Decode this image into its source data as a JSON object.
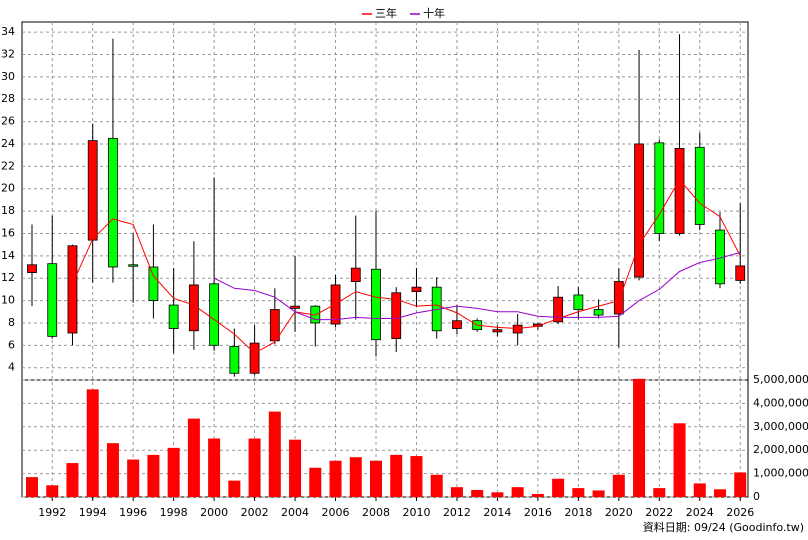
{
  "chart_data": [
    {
      "type": "candlestick",
      "categories": [
        null,
        "1992",
        null,
        "1994",
        null,
        "1996",
        null,
        "1998",
        null,
        "2000",
        null,
        "2002",
        null,
        "2004",
        null,
        "2006",
        null,
        "2008",
        null,
        "2010",
        null,
        "2012",
        null,
        "2014",
        null,
        "2016",
        null,
        "2018",
        null,
        "2020",
        null,
        "2022",
        null,
        "2024",
        null,
        "2026"
      ],
      "open": [
        12.5,
        13.3,
        7.1,
        15.4,
        24.5,
        13.2,
        13,
        9.6,
        7.3,
        11.5,
        5.9,
        3.5,
        6.4,
        9.3,
        9.5,
        7.9,
        11.7,
        12.8,
        6.6,
        10.8,
        11.2,
        7.5,
        8.2,
        7.2,
        7.1,
        7.7,
        8.1,
        10.5,
        9.2,
        8.8,
        12.1,
        24.1,
        16,
        23.7,
        16.3,
        11.8
      ],
      "high": [
        16.8,
        17.6,
        15,
        25.8,
        33.4,
        16,
        16.8,
        12.9,
        15.3,
        21,
        7.5,
        7.8,
        11.1,
        14,
        9.6,
        12.3,
        17.6,
        18,
        11.2,
        12.9,
        12.1,
        9.6,
        8.4,
        7.8,
        8.8,
        8,
        11.3,
        11.2,
        10.1,
        12.9,
        32.4,
        24.4,
        33.8,
        25,
        17.9,
        18.7
      ],
      "low": [
        9.5,
        6.6,
        6,
        11.6,
        11.6,
        9.8,
        8.4,
        5.3,
        5.6,
        5.5,
        3.2,
        3.3,
        6.1,
        7.2,
        5.9,
        7.6,
        8.3,
        5,
        5.4,
        9.4,
        6.6,
        7,
        7.2,
        6.8,
        6,
        7.4,
        7.9,
        8.3,
        8.4,
        5.8,
        11.8,
        15.3,
        15.8,
        16.3,
        11.1,
        11.5
      ],
      "close": [
        13.2,
        6.8,
        14.9,
        24.3,
        13,
        13.1,
        10,
        7.5,
        11.4,
        6,
        3.5,
        6.2,
        9.2,
        9.5,
        8,
        11.4,
        12.9,
        6.5,
        10.7,
        11.2,
        7.3,
        8.2,
        7.4,
        7.4,
        7.8,
        7.9,
        10.3,
        9.2,
        8.7,
        11.7,
        24,
        16,
        23.6,
        16.8,
        11.5,
        13.1
      ],
      "up_color": "#ff0000",
      "down_color": "#00ff00",
      "series": [
        {
          "name": "三年",
          "color": "#ff0000",
          "values": [
            null,
            null,
            11.5,
            15.5,
            17.3,
            16.8,
            12.2,
            10.2,
            9.6,
            8.3,
            7.0,
            5.3,
            6.3,
            9.0,
            8.7,
            9.7,
            10.8,
            10.3,
            10.1,
            9.5,
            9.6,
            8.9,
            7.8,
            7.6,
            7.5,
            7.7,
            8.4,
            9.0,
            9.5,
            10.0,
            15.0,
            17.7,
            20.8,
            18.7,
            17.5,
            14.0
          ]
        },
        {
          "name": "十年",
          "color": "#9900cc",
          "values": [
            null,
            null,
            null,
            null,
            null,
            null,
            null,
            null,
            null,
            12.0,
            11.1,
            10.9,
            10.3,
            9.0,
            8.3,
            8.3,
            8.5,
            8.4,
            8.4,
            8.9,
            9.2,
            9.5,
            9.3,
            9.0,
            9.0,
            8.6,
            8.5,
            8.5,
            8.5,
            8.6,
            10.0,
            11.0,
            12.6,
            13.4,
            13.8,
            14.3
          ]
        }
      ],
      "ylim": [
        2.9,
        34.9
      ],
      "yticks": [
        4,
        6,
        8,
        10,
        12,
        14,
        16,
        18,
        20,
        22,
        24,
        26,
        28,
        30,
        32,
        34
      ],
      "grid": true
    },
    {
      "type": "bar",
      "color": "#ff0000",
      "values": [
        850000,
        500000,
        1450000,
        4600000,
        2300000,
        1600000,
        1800000,
        2100000,
        3350000,
        2500000,
        700000,
        2500000,
        3650000,
        2450000,
        1250000,
        1550000,
        1700000,
        1550000,
        1800000,
        1750000,
        950000,
        420000,
        300000,
        200000,
        420000,
        130000,
        780000,
        380000,
        280000,
        950000,
        5050000,
        380000,
        3150000,
        580000,
        330000,
        1050000
      ],
      "ylim": [
        0,
        5000000
      ],
      "yticks": [
        0,
        {
          "value": 1000000,
          "label": "1,000,000"
        },
        {
          "value": 2000000,
          "label": "2,000,000"
        },
        {
          "value": 3000000,
          "label": "3,000,000"
        },
        {
          "value": 4000000,
          "label": "4,000,000"
        },
        {
          "value": 5000000,
          "label": "5,000,000"
        }
      ],
      "grid": true
    }
  ],
  "source": "資料日期: 09/24  (Goodinfo.tw)"
}
